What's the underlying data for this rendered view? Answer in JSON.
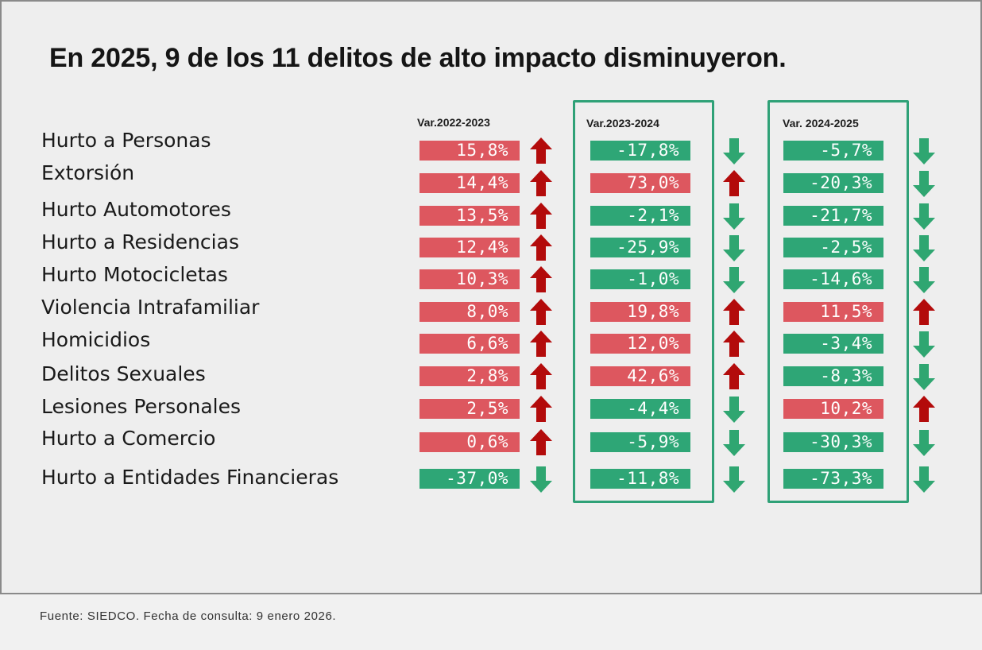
{
  "title": "En 2025, 9 de los 11 delitos de alto impacto disminuyeron.",
  "footer": "Fuente: SIEDCO. Fecha de consulta: 9 enero 2026.",
  "colors": {
    "up": "#dd575f",
    "down": "#2ea676",
    "arrow_up": "#b30b0b",
    "arrow_down": "#2fa671",
    "frame": "#2fa177"
  },
  "icons": {
    "up": "arrow-up-icon",
    "down": "arrow-down-icon"
  },
  "chart_data": {
    "type": "table",
    "title": "En 2025, 9 de los 11 delitos de alto impacto disminuyeron.",
    "columns": [
      "Var.2022-2023",
      "Var.2023-2024",
      "Var. 2024-2025"
    ],
    "highlighted_columns": [
      1,
      2
    ],
    "rows": [
      {
        "label": "Hurto a Personas",
        "values": [
          "15,8%",
          "-17,8%",
          "-5,7%"
        ],
        "numeric": [
          15.8,
          -17.8,
          -5.7
        ],
        "trend": [
          "up",
          "down",
          "down"
        ]
      },
      {
        "label": "Extorsión",
        "values": [
          "14,4%",
          "73,0%",
          "-20,3%"
        ],
        "numeric": [
          14.4,
          73.0,
          -20.3
        ],
        "trend": [
          "up",
          "up",
          "down"
        ]
      },
      {
        "label": "Hurto Automotores",
        "values": [
          "13,5%",
          "-2,1%",
          "-21,7%"
        ],
        "numeric": [
          13.5,
          -2.1,
          -21.7
        ],
        "trend": [
          "up",
          "down",
          "down"
        ]
      },
      {
        "label": "Hurto a Residencias",
        "values": [
          "12,4%",
          "-25,9%",
          "-2,5%"
        ],
        "numeric": [
          12.4,
          -25.9,
          -2.5
        ],
        "trend": [
          "up",
          "down",
          "down"
        ]
      },
      {
        "label": "Hurto Motocicletas",
        "values": [
          "10,3%",
          "-1,0%",
          "-14,6%"
        ],
        "numeric": [
          10.3,
          -1.0,
          -14.6
        ],
        "trend": [
          "up",
          "down",
          "down"
        ]
      },
      {
        "label": "Violencia Intrafamiliar",
        "values": [
          "8,0%",
          "19,8%",
          "11,5%"
        ],
        "numeric": [
          8.0,
          19.8,
          11.5
        ],
        "trend": [
          "up",
          "up",
          "up"
        ]
      },
      {
        "label": "Homicidios",
        "values": [
          "6,6%",
          "12,0%",
          "-3,4%"
        ],
        "numeric": [
          6.6,
          12.0,
          -3.4
        ],
        "trend": [
          "up",
          "up",
          "down"
        ]
      },
      {
        "label": "Delitos Sexuales",
        "values": [
          "2,8%",
          "42,6%",
          "-8,3%"
        ],
        "numeric": [
          2.8,
          42.6,
          -8.3
        ],
        "trend": [
          "up",
          "up",
          "down"
        ]
      },
      {
        "label": "Lesiones Personales",
        "values": [
          "2,5%",
          "-4,4%",
          "10,2%"
        ],
        "numeric": [
          2.5,
          -4.4,
          10.2
        ],
        "trend": [
          "up",
          "down",
          "up"
        ]
      },
      {
        "label": "Hurto a Comercio",
        "values": [
          "0,6%",
          "-5,9%",
          "-30,3%"
        ],
        "numeric": [
          0.6,
          -5.9,
          -30.3
        ],
        "trend": [
          "up",
          "down",
          "down"
        ]
      },
      {
        "label": "Hurto a Entidades Financieras",
        "values": [
          "-37,0%",
          "-11,8%",
          "-73,3%"
        ],
        "numeric": [
          -37.0,
          -11.8,
          -73.3
        ],
        "trend": [
          "down",
          "down",
          "down"
        ]
      }
    ]
  }
}
